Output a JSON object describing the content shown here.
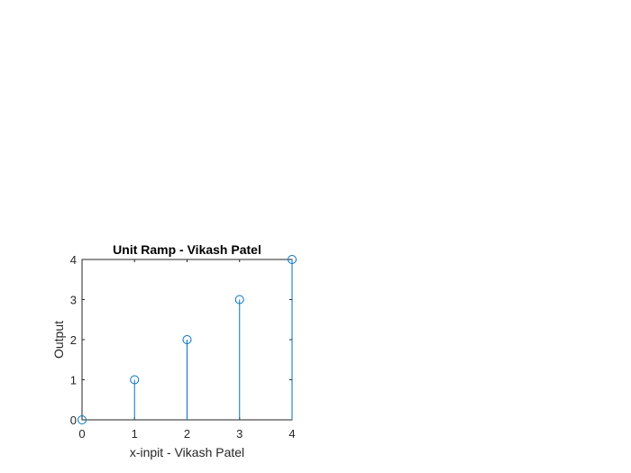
{
  "chart_data": {
    "type": "stem",
    "title": "Unit Ramp - Vikash Patel",
    "xlabel": "x-inpit - Vikash Patel",
    "ylabel": "Output",
    "x": [
      0,
      1,
      2,
      3,
      4
    ],
    "y": [
      0,
      1,
      2,
      3,
      4
    ],
    "xlim": [
      0,
      4
    ],
    "ylim": [
      0,
      4
    ],
    "xticks": [
      "0",
      "1",
      "2",
      "3",
      "4"
    ],
    "yticks": [
      "0",
      "1",
      "2",
      "3",
      "4"
    ],
    "grid": false,
    "marker": "circle",
    "color": "#0072bd",
    "axis_color": "#262626"
  }
}
